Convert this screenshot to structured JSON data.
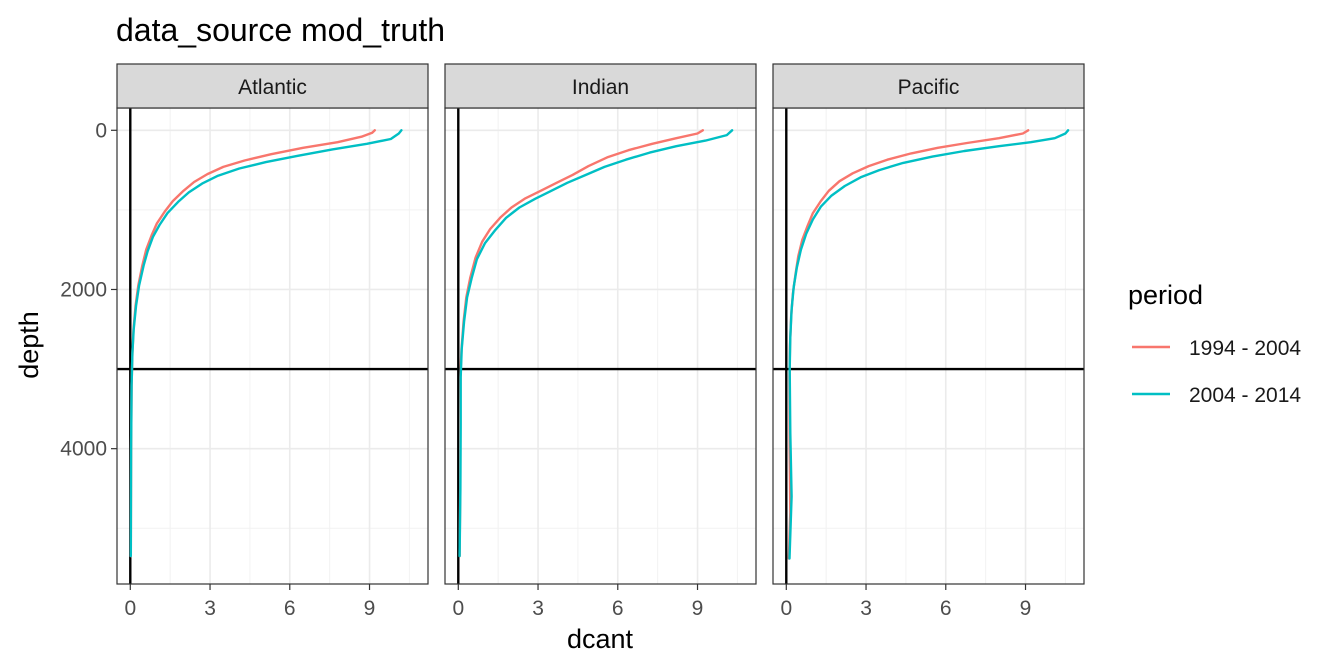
{
  "chart_data": {
    "type": "line",
    "title": "data_source mod_truth",
    "xlabel": "dcant",
    "ylabel": "depth",
    "x_ticks": [
      0,
      3,
      6,
      9
    ],
    "y_ticks": [
      0,
      2000,
      4000
    ],
    "xlim": [
      -0.5,
      11.2
    ],
    "ylim": [
      5700,
      -280
    ],
    "y_reversed": true,
    "grid": true,
    "reference_lines": {
      "vertical_x": 0,
      "horizontal_y": 3000
    },
    "legend": {
      "title": "period",
      "position": "right",
      "entries": [
        "1994 - 2004",
        "2004 - 2014"
      ]
    },
    "colors": {
      "1994 - 2004": "#F8766D",
      "2004 - 2014": "#00BFC4"
    },
    "panels": [
      {
        "name": "Atlantic",
        "series": [
          {
            "name": "1994 - 2004",
            "points": [
              [
                9.2,
                0
              ],
              [
                9.1,
                30
              ],
              [
                8.7,
                80
              ],
              [
                7.8,
                150
              ],
              [
                6.5,
                220
              ],
              [
                5.3,
                300
              ],
              [
                4.3,
                380
              ],
              [
                3.5,
                460
              ],
              [
                2.9,
                550
              ],
              [
                2.4,
                650
              ],
              [
                2.0,
                760
              ],
              [
                1.6,
                890
              ],
              [
                1.3,
                1020
              ],
              [
                1.0,
                1170
              ],
              [
                0.8,
                1320
              ],
              [
                0.6,
                1500
              ],
              [
                0.45,
                1700
              ],
              [
                0.3,
                1950
              ],
              [
                0.2,
                2200
              ],
              [
                0.12,
                2500
              ],
              [
                0.08,
                2800
              ],
              [
                0.05,
                3200
              ],
              [
                0.03,
                4000
              ],
              [
                0.02,
                5350
              ]
            ]
          },
          {
            "name": "2004 - 2014",
            "points": [
              [
                10.2,
                0
              ],
              [
                10.1,
                40
              ],
              [
                9.8,
                110
              ],
              [
                8.9,
                170
              ],
              [
                7.6,
                240
              ],
              [
                6.3,
                320
              ],
              [
                5.1,
                400
              ],
              [
                4.1,
                480
              ],
              [
                3.3,
                570
              ],
              [
                2.7,
                670
              ],
              [
                2.2,
                780
              ],
              [
                1.8,
                900
              ],
              [
                1.4,
                1040
              ],
              [
                1.1,
                1190
              ],
              [
                0.85,
                1340
              ],
              [
                0.65,
                1520
              ],
              [
                0.5,
                1700
              ],
              [
                0.33,
                1950
              ],
              [
                0.22,
                2200
              ],
              [
                0.13,
                2500
              ],
              [
                0.08,
                2800
              ],
              [
                0.05,
                3200
              ],
              [
                0.03,
                4000
              ],
              [
                0.02,
                5350
              ]
            ]
          }
        ]
      },
      {
        "name": "Indian",
        "series": [
          {
            "name": "1994 - 2004",
            "points": [
              [
                9.2,
                0
              ],
              [
                9.0,
                40
              ],
              [
                8.2,
                100
              ],
              [
                7.3,
                170
              ],
              [
                6.4,
                250
              ],
              [
                5.6,
                340
              ],
              [
                4.9,
                450
              ],
              [
                4.3,
                560
              ],
              [
                3.7,
                660
              ],
              [
                3.1,
                760
              ],
              [
                2.5,
                860
              ],
              [
                2.0,
                970
              ],
              [
                1.6,
                1090
              ],
              [
                1.2,
                1240
              ],
              [
                0.9,
                1400
              ],
              [
                0.65,
                1600
              ],
              [
                0.45,
                1850
              ],
              [
                0.3,
                2100
              ],
              [
                0.2,
                2400
              ],
              [
                0.12,
                2750
              ],
              [
                0.08,
                3100
              ],
              [
                0.07,
                3700
              ],
              [
                0.07,
                4500
              ],
              [
                0.05,
                5350
              ]
            ]
          },
          {
            "name": "2004 - 2014",
            "points": [
              [
                10.3,
                0
              ],
              [
                10.1,
                60
              ],
              [
                9.3,
                130
              ],
              [
                8.2,
                200
              ],
              [
                7.2,
                280
              ],
              [
                6.3,
                370
              ],
              [
                5.5,
                460
              ],
              [
                4.8,
                560
              ],
              [
                4.1,
                660
              ],
              [
                3.5,
                760
              ],
              [
                2.9,
                860
              ],
              [
                2.3,
                970
              ],
              [
                1.8,
                1100
              ],
              [
                1.4,
                1250
              ],
              [
                1.0,
                1420
              ],
              [
                0.7,
                1620
              ],
              [
                0.5,
                1860
              ],
              [
                0.33,
                2100
              ],
              [
                0.22,
                2400
              ],
              [
                0.13,
                2750
              ],
              [
                0.09,
                3100
              ],
              [
                0.09,
                3700
              ],
              [
                0.08,
                4500
              ],
              [
                0.05,
                5350
              ]
            ]
          }
        ]
      },
      {
        "name": "Pacific",
        "series": [
          {
            "name": "1994 - 2004",
            "points": [
              [
                9.1,
                0
              ],
              [
                8.9,
                40
              ],
              [
                8.0,
                100
              ],
              [
                6.8,
                160
              ],
              [
                5.7,
                220
              ],
              [
                4.7,
                290
              ],
              [
                3.8,
                370
              ],
              [
                3.1,
                450
              ],
              [
                2.5,
                540
              ],
              [
                2.0,
                640
              ],
              [
                1.6,
                760
              ],
              [
                1.3,
                890
              ],
              [
                1.0,
                1040
              ],
              [
                0.8,
                1200
              ],
              [
                0.6,
                1380
              ],
              [
                0.45,
                1580
              ],
              [
                0.35,
                1800
              ],
              [
                0.25,
                2050
              ],
              [
                0.18,
                2350
              ],
              [
                0.14,
                2700
              ],
              [
                0.12,
                3100
              ],
              [
                0.13,
                4000
              ],
              [
                0.15,
                4800
              ],
              [
                0.1,
                5380
              ]
            ]
          },
          {
            "name": "2004 - 2014",
            "points": [
              [
                10.6,
                0
              ],
              [
                10.5,
                40
              ],
              [
                10.1,
                100
              ],
              [
                9.2,
                150
              ],
              [
                8.0,
                200
              ],
              [
                6.7,
                260
              ],
              [
                5.5,
                330
              ],
              [
                4.4,
                410
              ],
              [
                3.5,
                500
              ],
              [
                2.8,
                590
              ],
              [
                2.2,
                700
              ],
              [
                1.7,
                820
              ],
              [
                1.3,
                960
              ],
              [
                1.0,
                1120
              ],
              [
                0.75,
                1300
              ],
              [
                0.55,
                1500
              ],
              [
                0.4,
                1720
              ],
              [
                0.28,
                1970
              ],
              [
                0.2,
                2250
              ],
              [
                0.15,
                2600
              ],
              [
                0.13,
                3000
              ],
              [
                0.15,
                3800
              ],
              [
                0.2,
                4600
              ],
              [
                0.12,
                5380
              ]
            ]
          }
        ]
      }
    ]
  }
}
